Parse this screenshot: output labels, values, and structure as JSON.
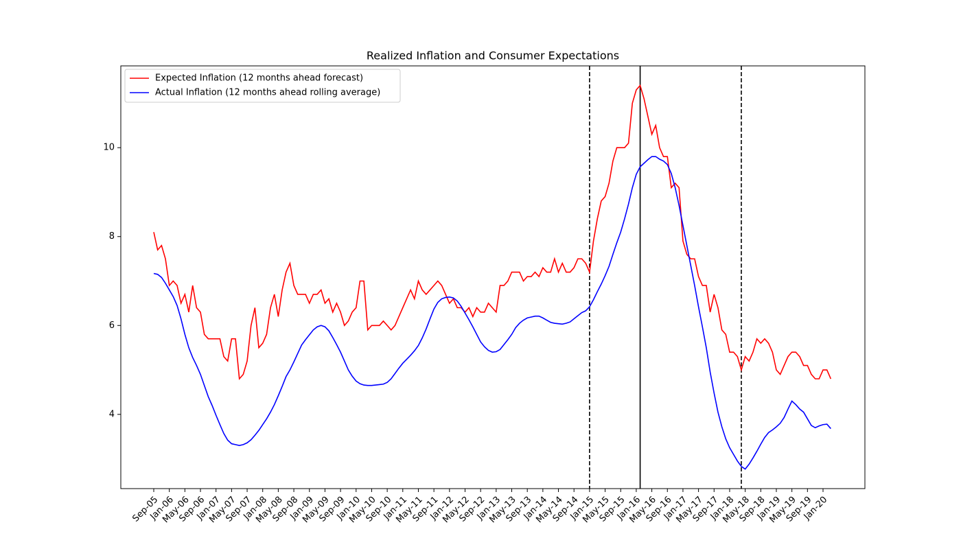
{
  "chart_data": {
    "type": "line",
    "title": "Realized Inflation and Consumer Expectations",
    "categories": [
      "Sep-05",
      null,
      null,
      null,
      "Jan-06",
      null,
      null,
      null,
      "May-06",
      null,
      null,
      null,
      "Sep-06",
      null,
      null,
      null,
      "Jan-07",
      null,
      null,
      null,
      "May-07",
      null,
      null,
      null,
      "Sep-07",
      null,
      null,
      null,
      "Jan-08",
      null,
      null,
      null,
      "May-08",
      null,
      null,
      null,
      "Sep-08",
      null,
      null,
      null,
      "Jan-09",
      null,
      null,
      null,
      "May-09",
      null,
      null,
      null,
      "Sep-09",
      null,
      null,
      null,
      "Jan-10",
      null,
      null,
      null,
      "May-10",
      null,
      null,
      null,
      "Sep-10",
      null,
      null,
      null,
      "Jan-11",
      null,
      null,
      null,
      "May-11",
      null,
      null,
      null,
      "Sep-11",
      null,
      null,
      null,
      "Jan-12",
      null,
      null,
      null,
      "May-12",
      null,
      null,
      null,
      "Sep-12",
      null,
      null,
      null,
      "Jan-13",
      null,
      null,
      null,
      "May-13",
      null,
      null,
      null,
      "Sep-13",
      null,
      null,
      null,
      "Jan-14",
      null,
      null,
      null,
      "May-14",
      null,
      null,
      null,
      "Sep-14",
      null,
      null,
      null,
      "Jan-15",
      null,
      null,
      null,
      "May-15",
      null,
      null,
      null,
      "Sep-15",
      null,
      null,
      null,
      "Jan-16",
      null,
      null,
      null,
      "May-16",
      null,
      null,
      null,
      "Sep-16",
      null,
      null,
      null,
      "Jan-17",
      null,
      null,
      null,
      "May-17",
      null,
      null,
      null,
      "Sep-17",
      null,
      null,
      null,
      "Jan-18",
      null,
      null,
      null,
      "May-18",
      null,
      null,
      null,
      "Sep-18",
      null,
      null,
      null,
      "Jan-19",
      null,
      null,
      null,
      "May-19",
      null,
      null,
      null,
      "Sep-19",
      null,
      null,
      null,
      "Jan-20",
      null,
      null
    ],
    "series": [
      {
        "name": "Expected Inflation (12 months ahead forecast)",
        "color": "#ff0000",
        "values": [
          8.1,
          7.7,
          7.8,
          7.5,
          6.9,
          7.0,
          6.9,
          6.5,
          6.7,
          6.3,
          6.9,
          6.4,
          6.3,
          5.8,
          5.7,
          5.7,
          5.7,
          5.7,
          5.3,
          5.2,
          5.7,
          5.7,
          4.8,
          4.9,
          5.2,
          6.0,
          6.4,
          5.5,
          5.6,
          5.8,
          6.4,
          6.7,
          6.2,
          6.8,
          7.2,
          7.4,
          6.9,
          6.7,
          6.7,
          6.7,
          6.5,
          6.7,
          6.7,
          6.8,
          6.5,
          6.6,
          6.3,
          6.5,
          6.3,
          6.0,
          6.1,
          6.3,
          6.4,
          7.0,
          7.0,
          5.9,
          6.0,
          6.0,
          6.0,
          6.1,
          6.0,
          5.9,
          6.0,
          6.2,
          6.4,
          6.6,
          6.8,
          6.6,
          7.0,
          6.8,
          6.7,
          6.8,
          6.9,
          7.0,
          6.9,
          6.7,
          6.5,
          6.6,
          6.4,
          6.4,
          6.3,
          6.4,
          6.2,
          6.4,
          6.3,
          6.3,
          6.5,
          6.4,
          6.3,
          6.9,
          6.9,
          7.0,
          7.2,
          7.2,
          7.2,
          7.0,
          7.1,
          7.1,
          7.2,
          7.1,
          7.3,
          7.2,
          7.2,
          7.5,
          7.2,
          7.4,
          7.2,
          7.2,
          7.3,
          7.5,
          7.5,
          7.4,
          7.2,
          7.9,
          8.4,
          8.8,
          8.9,
          9.2,
          9.7,
          10.0,
          10.0,
          10.0,
          10.1,
          11.0,
          11.3,
          11.4,
          11.1,
          10.7,
          10.3,
          10.5,
          10.0,
          9.8,
          9.8,
          9.1,
          9.2,
          9.1,
          7.9,
          7.6,
          7.5,
          7.5,
          7.1,
          6.9,
          6.9,
          6.3,
          6.7,
          6.4,
          5.9,
          5.8,
          5.4,
          5.4,
          5.3,
          5.0,
          5.3,
          5.2,
          5.4,
          5.7,
          5.6,
          5.7,
          5.6,
          5.4,
          5.0,
          4.9,
          5.1,
          5.3,
          5.4,
          5.4,
          5.3,
          5.1,
          5.1,
          4.9,
          4.8,
          4.8,
          5.0,
          5.0,
          4.8
        ]
      },
      {
        "name": "Actual Inflation (12 months ahead rolling average)",
        "color": "#0000ff",
        "values": [
          7.17,
          7.15,
          7.08,
          6.95,
          6.8,
          6.65,
          6.45,
          6.15,
          5.8,
          5.5,
          5.28,
          5.1,
          4.9,
          4.65,
          4.4,
          4.2,
          3.98,
          3.77,
          3.57,
          3.42,
          3.34,
          3.32,
          3.3,
          3.32,
          3.36,
          3.43,
          3.53,
          3.64,
          3.77,
          3.9,
          4.05,
          4.22,
          4.42,
          4.63,
          4.85,
          5.0,
          5.18,
          5.37,
          5.56,
          5.68,
          5.79,
          5.9,
          5.97,
          6.0,
          5.97,
          5.88,
          5.73,
          5.57,
          5.4,
          5.2,
          5.0,
          4.86,
          4.75,
          4.69,
          4.66,
          4.65,
          4.65,
          4.66,
          4.67,
          4.68,
          4.72,
          4.8,
          4.92,
          5.04,
          5.15,
          5.24,
          5.33,
          5.43,
          5.55,
          5.72,
          5.92,
          6.15,
          6.37,
          6.52,
          6.6,
          6.63,
          6.64,
          6.62,
          6.55,
          6.43,
          6.28,
          6.13,
          5.97,
          5.8,
          5.63,
          5.52,
          5.44,
          5.4,
          5.41,
          5.46,
          5.57,
          5.68,
          5.8,
          5.95,
          6.05,
          6.12,
          6.17,
          6.19,
          6.21,
          6.21,
          6.17,
          6.12,
          6.07,
          6.05,
          6.04,
          6.03,
          6.05,
          6.08,
          6.15,
          6.22,
          6.29,
          6.33,
          6.42,
          6.58,
          6.76,
          6.93,
          7.12,
          7.33,
          7.6,
          7.86,
          8.1,
          8.4,
          8.73,
          9.1,
          9.4,
          9.57,
          9.65,
          9.73,
          9.8,
          9.8,
          9.74,
          9.7,
          9.62,
          9.42,
          9.1,
          8.7,
          8.25,
          7.8,
          7.35,
          6.9,
          6.42,
          5.97,
          5.5,
          4.95,
          4.48,
          4.05,
          3.72,
          3.45,
          3.25,
          3.1,
          2.95,
          2.83,
          2.77,
          2.88,
          3.02,
          3.17,
          3.33,
          3.48,
          3.59,
          3.65,
          3.72,
          3.8,
          3.93,
          4.12,
          4.3,
          4.22,
          4.12,
          4.05,
          3.9,
          3.75,
          3.7,
          3.74,
          3.77,
          3.78,
          3.68
        ]
      }
    ],
    "vlines": [
      {
        "index": 112,
        "style": "dashed",
        "color": "#000000"
      },
      {
        "index": 125,
        "style": "solid",
        "color": "#000000"
      },
      {
        "index": 151,
        "style": "dashed",
        "color": "#000000"
      }
    ],
    "ylim": [
      2.33,
      11.84
    ],
    "yticks": [
      4,
      6,
      8,
      10
    ],
    "grid": false,
    "legend": "upper left"
  }
}
